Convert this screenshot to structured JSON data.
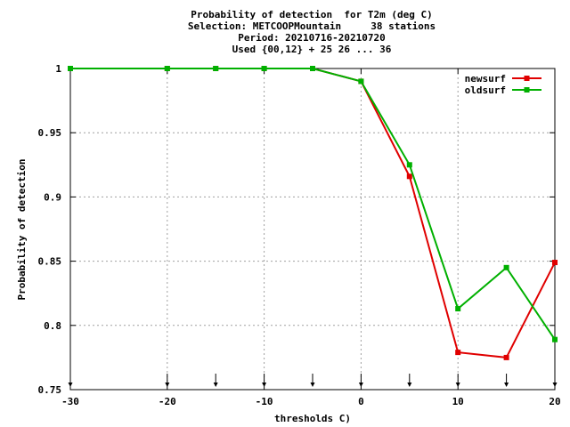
{
  "chart_data": {
    "type": "line",
    "title_lines": [
      "Probability of detection  for T2m (deg C)",
      "Selection: METCOOPMountain     38 stations",
      "Period: 20210716-20210720",
      "Used {00,12} + 25 26 ... 36"
    ],
    "xlabel": "thresholds C)",
    "ylabel": "Probability of detection",
    "xlim": [
      -30,
      20
    ],
    "ylim": [
      0.75,
      1.0
    ],
    "xticks": [
      -30,
      -20,
      -10,
      0,
      10,
      20
    ],
    "xtick_labels": [
      "-30",
      "-20",
      "-10",
      "0",
      "10",
      "20"
    ],
    "yticks": [
      0.75,
      0.8,
      0.85,
      0.9,
      0.95,
      1.0
    ],
    "ytick_labels": [
      "0.75",
      "0.8",
      "0.85",
      "0.9",
      "0.95",
      "1"
    ],
    "grid": true,
    "legend_position": "top-right",
    "threshold_markers": [
      -30,
      -20,
      -15,
      -10,
      -5,
      0,
      5,
      10,
      15,
      20
    ],
    "series": [
      {
        "name": "newsurf",
        "color": "#e00000",
        "x": [
          -30,
          -20,
          -15,
          -10,
          -5,
          0,
          5,
          10,
          15,
          20
        ],
        "y": [
          1.0,
          1.0,
          1.0,
          1.0,
          1.0,
          0.99,
          0.916,
          0.779,
          0.775,
          0.849
        ]
      },
      {
        "name": "oldsurf",
        "color": "#00b000",
        "x": [
          -30,
          -20,
          -15,
          -10,
          -5,
          0,
          5,
          10,
          15,
          20
        ],
        "y": [
          1.0,
          1.0,
          1.0,
          1.0,
          1.0,
          0.99,
          0.925,
          0.813,
          0.845,
          0.789
        ]
      }
    ]
  }
}
